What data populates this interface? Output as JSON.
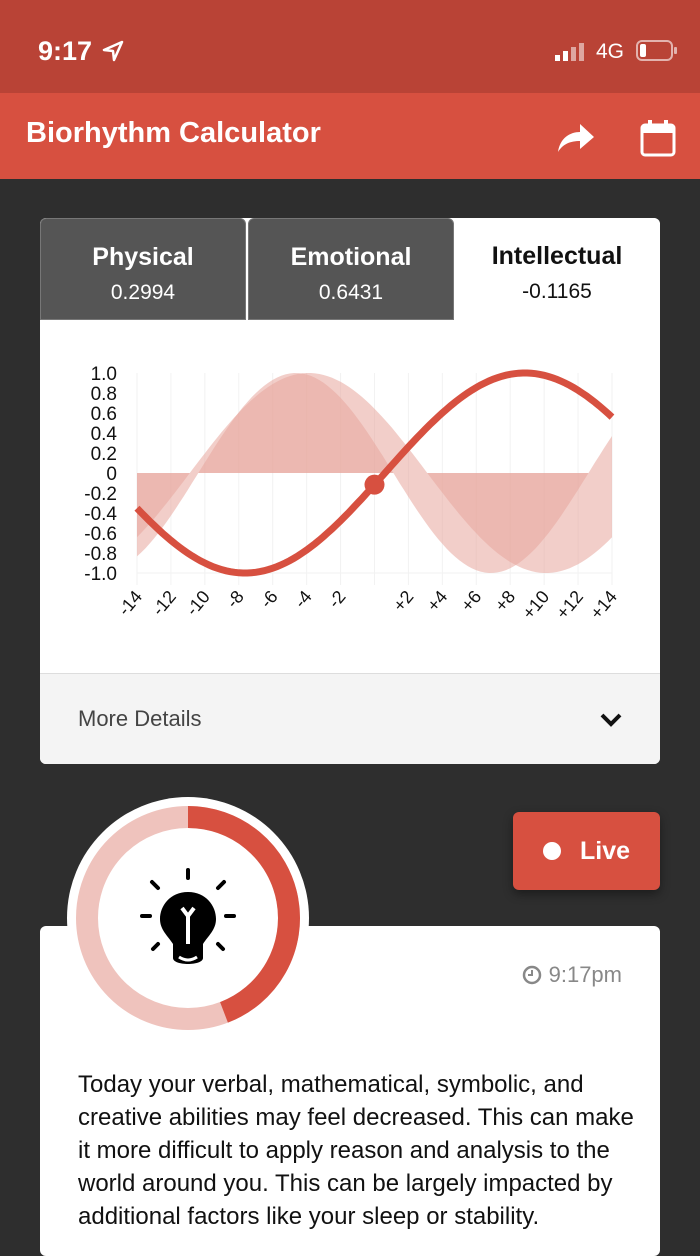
{
  "status_bar": {
    "time": "9:17",
    "network": "4G",
    "icons": [
      "location-arrow-icon",
      "signal-icon",
      "battery-icon"
    ]
  },
  "header": {
    "title": "Biorhythm Calculator",
    "icons": [
      "share-icon",
      "calendar-icon"
    ]
  },
  "tabs": [
    {
      "name": "Physical",
      "value": "0.2994"
    },
    {
      "name": "Emotional",
      "value": "0.6431"
    },
    {
      "name": "Intellectual",
      "value": "-0.1165",
      "active": true
    }
  ],
  "chart_data": {
    "type": "area",
    "x_ticks": [
      "-14",
      "-12",
      "-10",
      "-8",
      "-6",
      "-4",
      "-2",
      "+2",
      "+4",
      "+6",
      "+8",
      "+10",
      "+12",
      "+14"
    ],
    "y_ticks": [
      "1.0",
      "0.8",
      "0.6",
      "0.4",
      "0.2",
      "0",
      "-0.2",
      "-0.4",
      "-0.6",
      "-0.8",
      "-1.0"
    ],
    "xlim": [
      -14,
      14
    ],
    "ylim": [
      -1,
      1
    ],
    "series": [
      {
        "name": "Physical",
        "period_days": 23,
        "today": 0.2994,
        "trend": "falling",
        "style": "area"
      },
      {
        "name": "Emotional",
        "period_days": 28,
        "today": 0.6431,
        "trend": "falling",
        "style": "area"
      },
      {
        "name": "Intellectual",
        "period_days": 33,
        "today": -0.1165,
        "trend": "rising",
        "style": "line"
      }
    ],
    "colors": {
      "line": "#d75040",
      "fill": "#e8a59c"
    }
  },
  "more_details": "More Details",
  "live_label": "Live",
  "gauge": {
    "fraction": 0.442,
    "icon": "lightbulb-icon"
  },
  "timestamp": "9:17pm",
  "description": "Today your verbal, mathematical, symbolic, and creative abilities may feel decreased. This can make it more difficult to apply reason and analysis to the world around you. This can be largely impacted by additional factors like your sleep or stability."
}
